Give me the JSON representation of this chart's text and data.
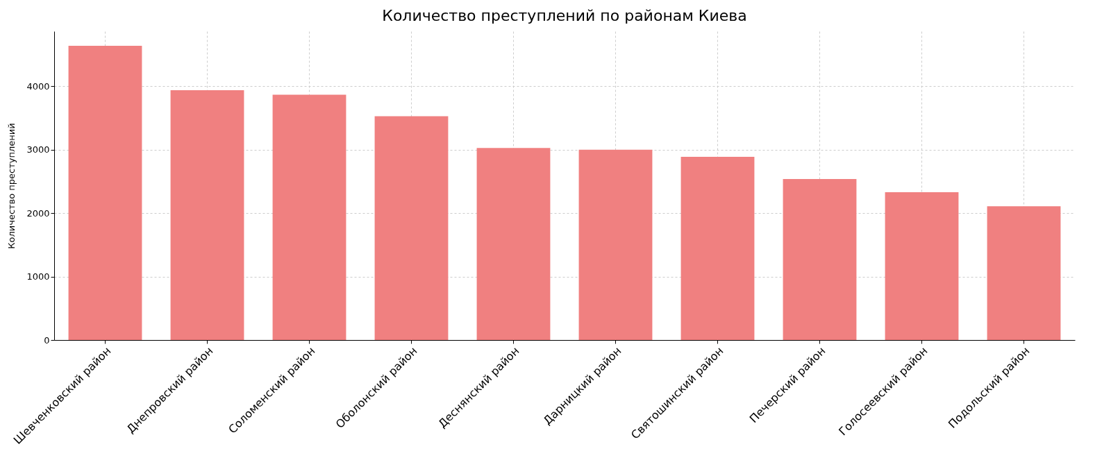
{
  "chart_data": {
    "type": "bar",
    "title": "Количество преступлений по районам Киева",
    "ylabel": "Количество преступлений",
    "categories": [
      "Шевченковский район",
      "Днепровский район",
      "Соломенский район",
      "Оболонский район",
      "Деснянский район",
      "Дарницкий район",
      "Святошинский район",
      "Печерский район",
      "Голосеевский район",
      "Подольский район"
    ],
    "values": [
      4640,
      3940,
      3870,
      3530,
      3030,
      3000,
      2890,
      2540,
      2330,
      2110
    ],
    "color": "#f08080",
    "ylim": [
      0,
      4870
    ],
    "yticks": [
      0,
      1000,
      2000,
      3000,
      4000
    ],
    "grid": true
  }
}
